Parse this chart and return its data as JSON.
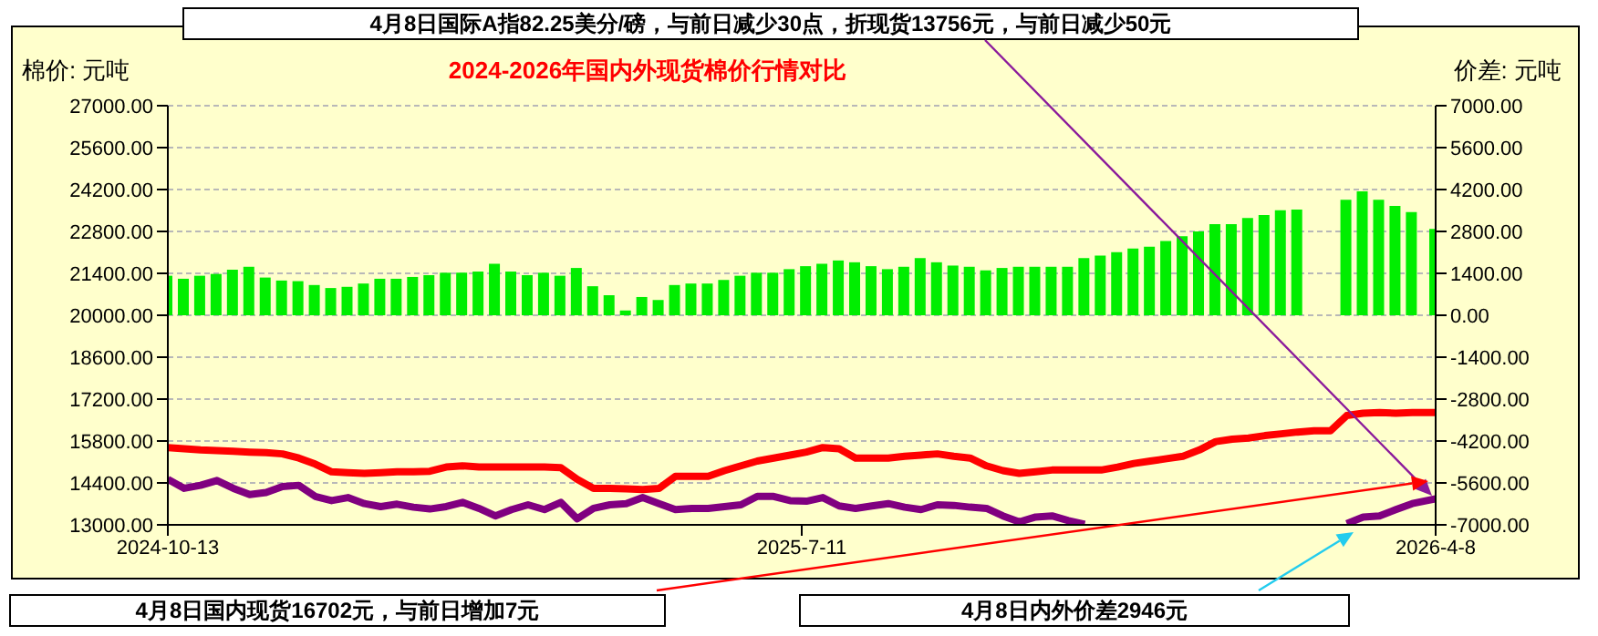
{
  "chart_data": {
    "type": "line",
    "title": "2024-2026年国内外现货棉价行情对比",
    "ylabel": "棉价: 元吨",
    "y2label": "价差: 元吨",
    "annotations": [
      "4月8日国际A指82.25美分/磅，与前日减少30点，折现货13756元，与前日减少50元",
      "4月8日国内现货16702元，与前日增加7元",
      "4月8日内外价差2946元"
    ],
    "x": [
      "2024-10-13",
      "2024-10-20",
      "2024-10-27",
      "2024-11-03",
      "2024-11-10",
      "2024-11-17",
      "2024-11-24",
      "2024-12-01",
      "2024-12-08",
      "2024-12-15",
      "2024-12-22",
      "2024-12-29",
      "2025-01-05",
      "2025-01-12",
      "2025-01-19",
      "2025-01-26",
      "2025-02-02",
      "2025-02-09",
      "2025-02-16",
      "2025-02-23",
      "2025-03-02",
      "2025-03-09",
      "2025-03-16",
      "2025-03-23",
      "2025-03-30",
      "2025-04-06",
      "2025-04-13",
      "2025-04-20",
      "2025-04-27",
      "2025-05-04",
      "2025-05-11",
      "2025-05-18",
      "2025-05-25",
      "2025-06-01",
      "2025-06-08",
      "2025-06-15",
      "2025-06-22",
      "2025-06-29",
      "2025-07-06",
      "2025-07-13",
      "2025-07-20",
      "2025-07-27",
      "2025-08-03",
      "2025-08-10",
      "2025-08-17",
      "2025-08-24",
      "2025-08-31",
      "2025-09-07",
      "2025-09-14",
      "2025-09-21",
      "2025-09-28",
      "2025-10-05",
      "2025-10-12",
      "2025-10-19",
      "2025-10-26",
      "2025-11-02",
      "2025-11-09",
      "2025-11-16",
      "2025-11-23",
      "2025-11-30",
      "2025-12-07",
      "2025-12-14",
      "2025-12-21",
      "2025-12-28",
      "2026-01-04",
      "2026-01-11",
      "2026-01-18",
      "2026-01-25",
      "2026-02-01",
      "2026-02-08",
      "2026-02-15",
      "2026-02-22",
      "2026-03-01",
      "2026-03-08",
      "2026-03-15",
      "2026-03-22",
      "2026-03-29",
      "2026-04-08"
    ],
    "series": [
      {
        "color": "#ff0000",
        "values": [
          15580,
          15540,
          15500,
          15480,
          15460,
          15430,
          15410,
          15370,
          15230,
          15030,
          14770,
          14740,
          14720,
          14740,
          14770,
          14770,
          14790,
          14930,
          14970,
          14930,
          14930,
          14930,
          14930,
          14930,
          14910,
          14520,
          14220,
          14220,
          14200,
          14180,
          14220,
          14620,
          14620,
          14620,
          14810,
          14970,
          15130,
          15230,
          15330,
          15430,
          15580,
          15540,
          15230,
          15230,
          15230,
          15290,
          15330,
          15370,
          15290,
          15230,
          14970,
          14810,
          14720,
          14770,
          14830,
          14830,
          14830,
          14830,
          14930,
          15050,
          15130,
          15210,
          15290,
          15500,
          15780,
          15860,
          15900,
          15980,
          16040,
          16100,
          16140,
          16140,
          16650,
          16730,
          16750,
          16730,
          16750,
          16750
        ]
      },
      {
        "color": "#800080",
        "values": [
          14520,
          14220,
          14320,
          14480,
          14220,
          14010,
          14080,
          14280,
          14320,
          13950,
          13810,
          13910,
          13710,
          13610,
          13690,
          13590,
          13530,
          13610,
          13750,
          13550,
          13300,
          13510,
          13670,
          13510,
          13750,
          13200,
          13550,
          13670,
          13710,
          13910,
          13710,
          13510,
          13550,
          13550,
          13610,
          13670,
          13950,
          13950,
          13810,
          13790,
          13910,
          13630,
          13550,
          13630,
          13710,
          13590,
          13510,
          13670,
          13650,
          13590,
          13550,
          13300,
          13100,
          13260,
          13300,
          13140,
          13020,
          null,
          null,
          null,
          null,
          null,
          null,
          null,
          null,
          null,
          null,
          null,
          null,
          null,
          null,
          null,
          13040,
          13260,
          13300,
          13510,
          13710,
          13870
        ]
      },
      {
        "type": "bar",
        "axis": "y2",
        "color": "#00ee00",
        "values": [
          1320,
          1220,
          1320,
          1380,
          1520,
          1620,
          1260,
          1160,
          1140,
          1010,
          910,
          950,
          1060,
          1220,
          1220,
          1280,
          1340,
          1420,
          1420,
          1460,
          1720,
          1460,
          1340,
          1420,
          1320,
          1580,
          970,
          670,
          160,
          610,
          510,
          1010,
          1060,
          1060,
          1180,
          1320,
          1420,
          1420,
          1540,
          1640,
          1720,
          1830,
          1770,
          1640,
          1540,
          1620,
          1910,
          1770,
          1660,
          1620,
          1500,
          1580,
          1620,
          1620,
          1620,
          1620,
          1910,
          1990,
          2110,
          2230,
          2290,
          2480,
          2640,
          2800,
          3040,
          3040,
          3250,
          3350,
          3510,
          3530,
          null,
          null,
          3860,
          4140,
          3860,
          3650,
          3450,
          2880
        ]
      }
    ],
    "xlim": [
      "2024-10-13",
      "2026-04-08"
    ],
    "xticks": [
      {
        "value": "2024-10-13",
        "label": "2024-10-13"
      },
      {
        "value": "2025-07-11",
        "label": "2025-7-11"
      },
      {
        "value": "2026-04-08",
        "label": "2026-4-8"
      }
    ],
    "ylim": [
      13000,
      27000
    ],
    "yticks": [
      {
        "value": 13000,
        "label": "13000.00"
      },
      {
        "value": 14400,
        "label": "14400.00"
      },
      {
        "value": 15800,
        "label": "15800.00"
      },
      {
        "value": 17200,
        "label": "17200.00"
      },
      {
        "value": 18600,
        "label": "18600.00"
      },
      {
        "value": 20000,
        "label": "20000.00"
      },
      {
        "value": 21400,
        "label": "21400.00"
      },
      {
        "value": 22800,
        "label": "22800.00"
      },
      {
        "value": 24200,
        "label": "24200.00"
      },
      {
        "value": 25600,
        "label": "25600.00"
      },
      {
        "value": 27000,
        "label": "27000.00"
      }
    ],
    "y2lim": [
      -7000,
      7000
    ],
    "y2ticks": [
      {
        "value": -7000,
        "label": "-7000.00"
      },
      {
        "value": -5600,
        "label": "-5600.00"
      },
      {
        "value": -4200,
        "label": "-4200.00"
      },
      {
        "value": -2800,
        "label": "-2800.00"
      },
      {
        "value": -1400,
        "label": "-1400.00"
      },
      {
        "value": 0,
        "label": "0.00"
      },
      {
        "value": 1400,
        "label": "1400.00"
      },
      {
        "value": 2800,
        "label": "2800.00"
      },
      {
        "value": 4200,
        "label": "4200.00"
      },
      {
        "value": 5600,
        "label": "5600.00"
      },
      {
        "value": 7000,
        "label": "7000.00"
      }
    ],
    "grid": "y"
  }
}
